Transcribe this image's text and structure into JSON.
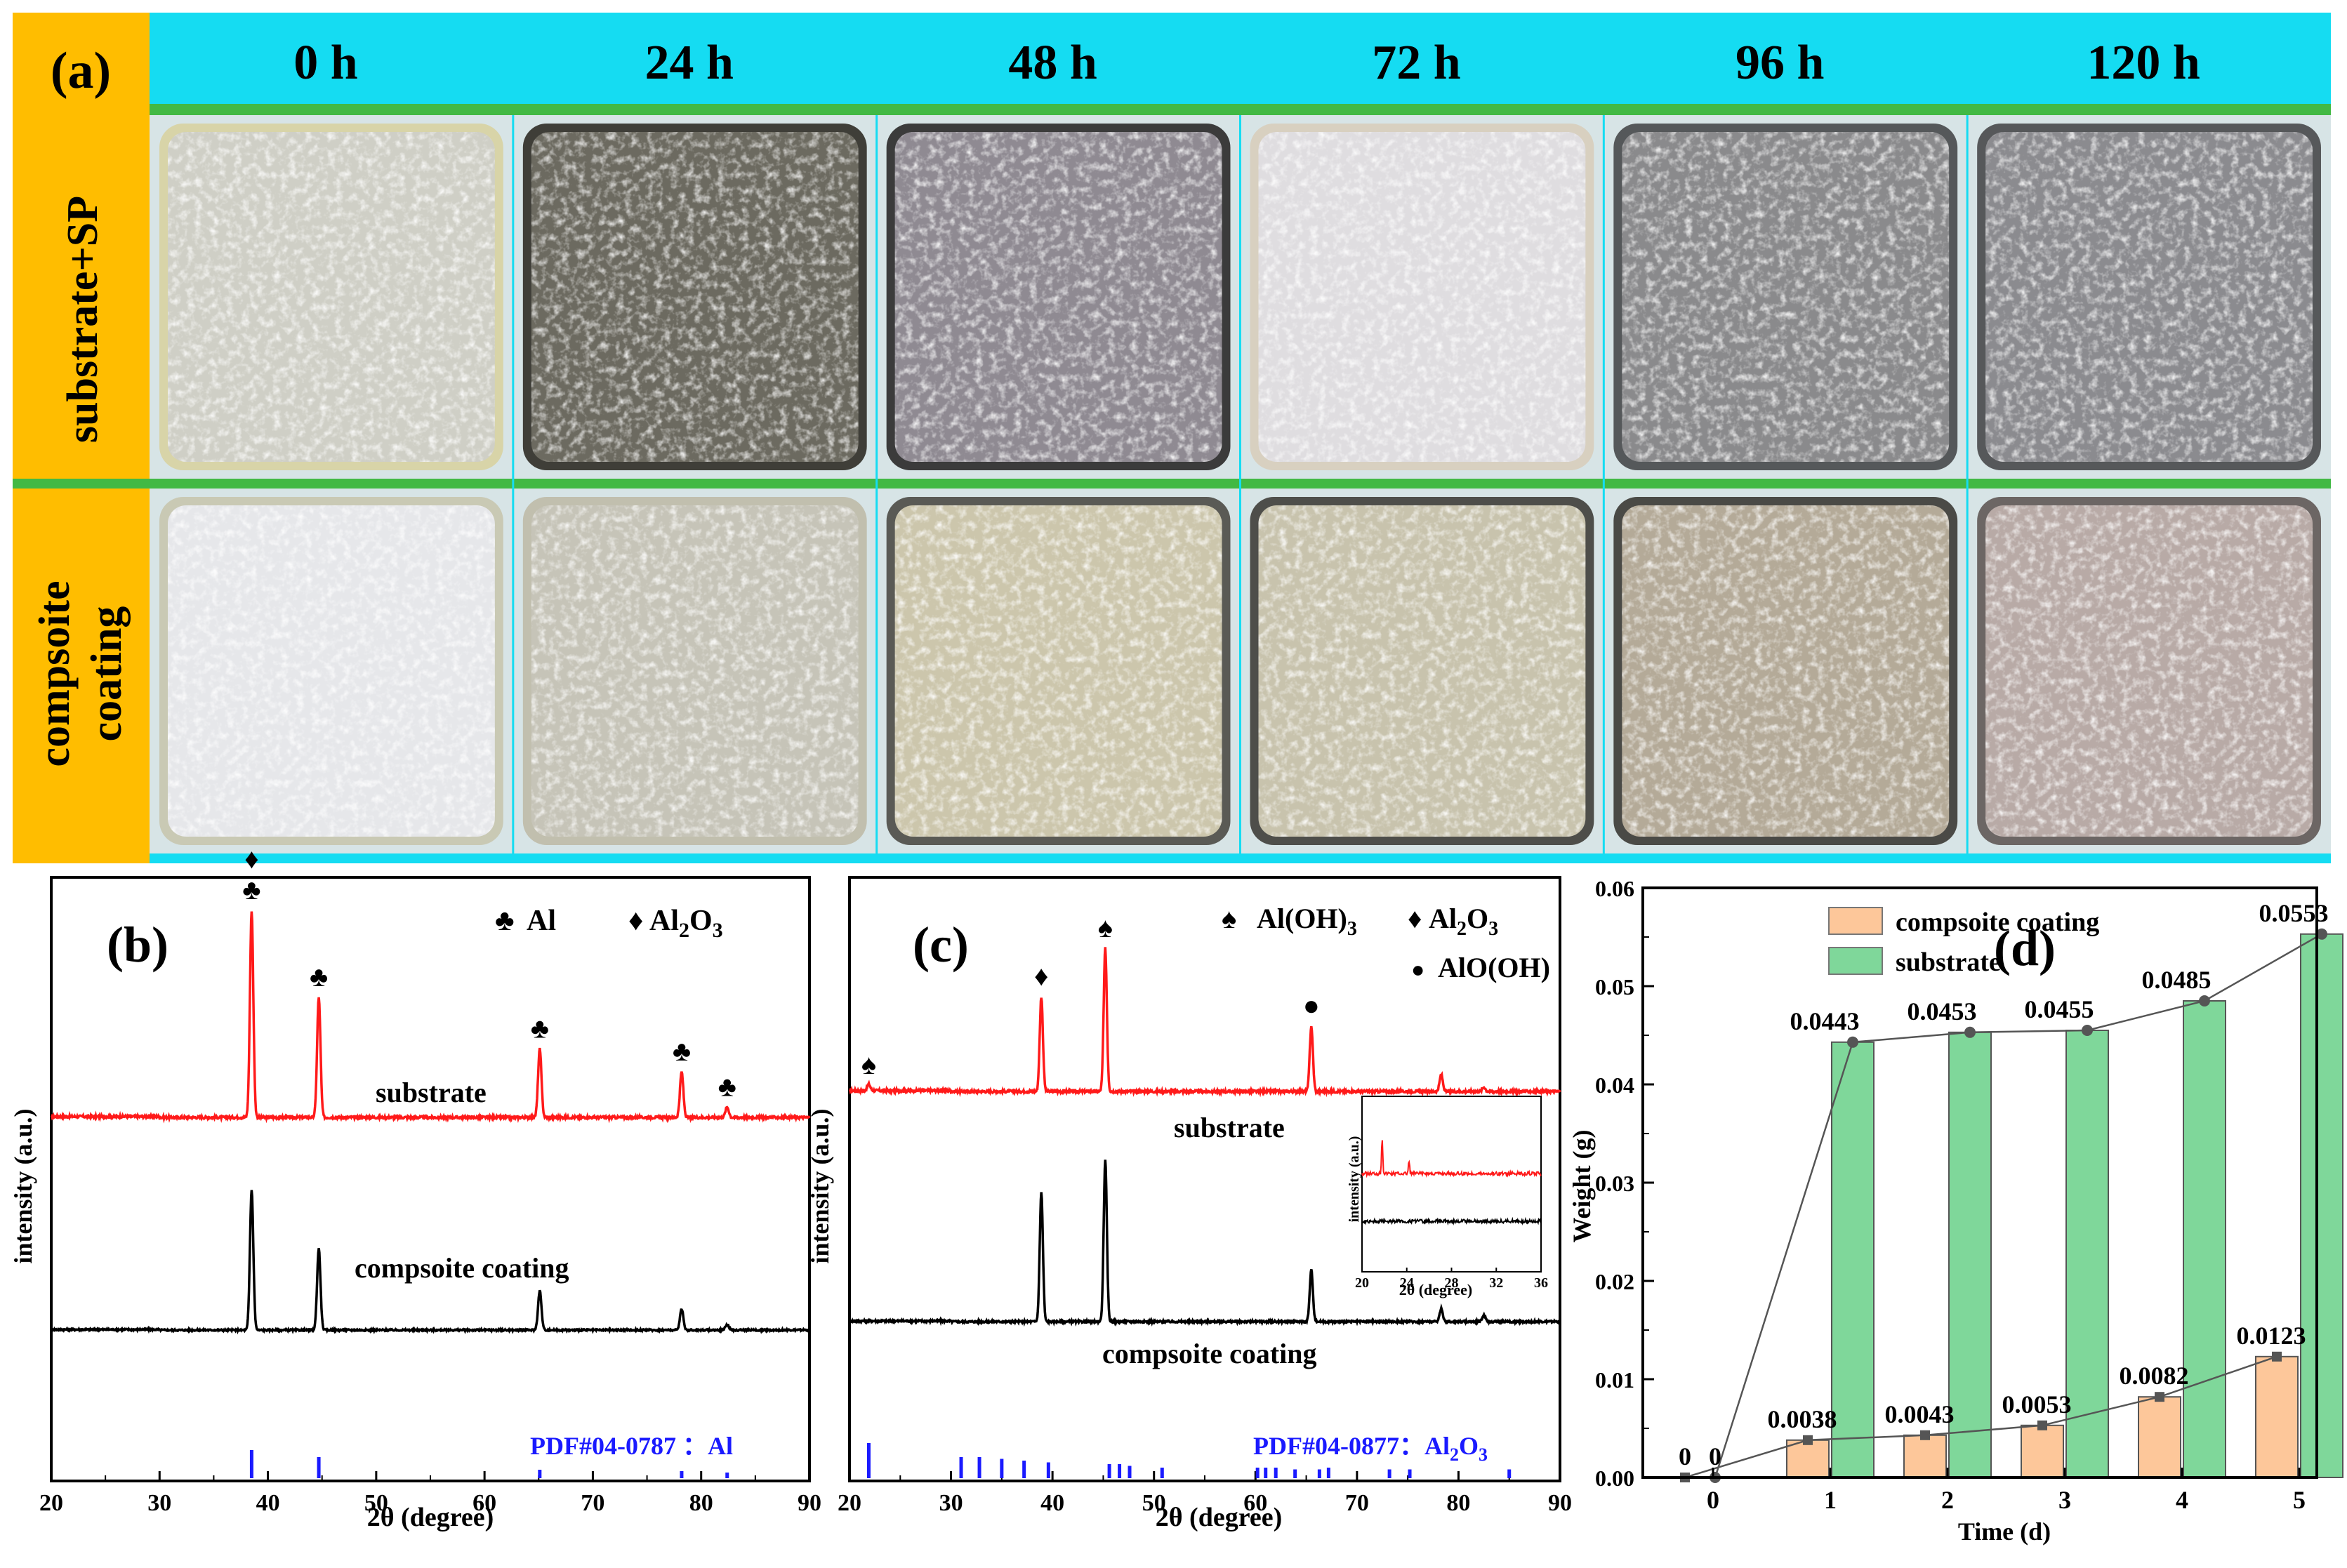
{
  "panel_a": {
    "label": "(a)",
    "times": [
      "0 h",
      "24 h",
      "48 h",
      "72 h",
      "96 h",
      "120 h"
    ],
    "rows": [
      "substrate+SP",
      [
        "compsoite",
        "coating"
      ]
    ],
    "colors": {
      "header": "#15dcf2",
      "row_label": "#ffbd00",
      "divider": "#42b944"
    },
    "samples": [
      [
        {
          "base": "#cfcfc6",
          "spot": "#ecece6",
          "rim": "#d8d4a8"
        },
        {
          "base": "#6c6a60",
          "spot": "#c9c8c0",
          "rim": "#3f3e38"
        },
        {
          "base": "#8f8a92",
          "spot": "#e2e4ea",
          "rim": "#3b3b3b"
        },
        {
          "base": "#dfdde0",
          "spot": "#f5f5f7",
          "rim": "#d8d0c0"
        },
        {
          "base": "#8a8a8c",
          "spot": "#d0d2d6",
          "rim": "#55585a"
        },
        {
          "base": "#8b8b8f",
          "spot": "#d4d6da",
          "rim": "#56585a"
        }
      ],
      [
        {
          "base": "#e6e7ea",
          "spot": "#f4f5f7",
          "rim": "#c9c9b4"
        },
        {
          "base": "#c6c4b8",
          "spot": "#dcdbd2",
          "rim": "#c1bfae"
        },
        {
          "base": "#ccc6ac",
          "spot": "#e5e1cf",
          "rim": "#5a5a55"
        },
        {
          "base": "#c8c3ad",
          "spot": "#e0dcca",
          "rim": "#4e4e4a"
        },
        {
          "base": "#b4aa98",
          "spot": "#d6cfc0",
          "rim": "#4a4a46"
        },
        {
          "base": "#b8aaa6",
          "spot": "#dad2cc",
          "rim": "#6c6664"
        }
      ]
    ]
  },
  "panel_b": {
    "label": "(b)",
    "legend": [
      {
        "sym": "♣",
        "text": "Al"
      },
      {
        "sym": "♦",
        "text": "Al",
        "sub": "2",
        "text2": "O",
        "sub2": "3"
      }
    ],
    "trace_labels": [
      "substrate",
      "compsoite coating"
    ],
    "ref_text": "PDF#04-0787 ：Al"
  },
  "panel_c": {
    "label": "(c)",
    "legend": [
      {
        "sym": "♠",
        "text": "Al(OH)",
        "sub": "3"
      },
      {
        "sym": "♦",
        "text": "Al",
        "sub": "2",
        "text2": "O",
        "sub2": "3"
      },
      {
        "sym": "●",
        "text": "AlO(OH)"
      }
    ],
    "trace_labels": [
      "substrate",
      "compsoite coating"
    ],
    "ref_text": "PDF#04-0877：Al",
    "ref_sub": "2",
    "ref_text2": "O",
    "ref_sub2": "3"
  },
  "chart_data": [
    {
      "type": "line",
      "panel": "(b)",
      "xlabel": "2θ (degree)",
      "ylabel": "intensity (a.u.)",
      "xlim": [
        20,
        90
      ],
      "xticks": [
        20,
        30,
        40,
        50,
        60,
        70,
        80,
        90
      ],
      "series": [
        {
          "name": "substrate",
          "color": "#ff1a1a",
          "peaks": [
            {
              "x": 38.5,
              "h": 1.0
            },
            {
              "x": 44.7,
              "h": 0.58
            },
            {
              "x": 65.1,
              "h": 0.33
            },
            {
              "x": 78.2,
              "h": 0.22
            },
            {
              "x": 82.4,
              "h": 0.05
            }
          ]
        },
        {
          "name": "compsoite coating",
          "color": "#000000",
          "peaks": [
            {
              "x": 38.5,
              "h": 1.0
            },
            {
              "x": 44.7,
              "h": 0.58
            },
            {
              "x": 65.1,
              "h": 0.28
            },
            {
              "x": 78.2,
              "h": 0.15
            },
            {
              "x": 82.4,
              "h": 0.04
            }
          ]
        }
      ],
      "markers": [
        {
          "x": 38.5,
          "syms": [
            "♦",
            "♣"
          ]
        },
        {
          "x": 44.7,
          "syms": [
            "♣"
          ]
        },
        {
          "x": 65.1,
          "syms": [
            "♣"
          ]
        },
        {
          "x": 78.2,
          "syms": [
            "♣"
          ]
        },
        {
          "x": 82.4,
          "syms": [
            "♣"
          ]
        }
      ],
      "reference": {
        "color": "#1a1aff",
        "lines": [
          {
            "x": 38.5,
            "h": 1.0
          },
          {
            "x": 44.7,
            "h": 0.75
          },
          {
            "x": 65.1,
            "h": 0.3
          },
          {
            "x": 78.2,
            "h": 0.25
          },
          {
            "x": 82.4,
            "h": 0.2
          }
        ]
      }
    },
    {
      "type": "line",
      "panel": "(c)",
      "xlabel": "2θ (degree)",
      "ylabel": "intensity (a.u.)",
      "xlim": [
        20,
        90
      ],
      "xticks": [
        20,
        30,
        40,
        50,
        60,
        70,
        80,
        90
      ],
      "series": [
        {
          "name": "substrate",
          "color": "#ff1a1a",
          "peaks": [
            {
              "x": 21.9,
              "h": 0.03
            },
            {
              "x": 38.9,
              "h": 0.45
            },
            {
              "x": 45.2,
              "h": 0.68
            },
            {
              "x": 65.5,
              "h": 0.31
            },
            {
              "x": 78.3,
              "h": 0.08
            },
            {
              "x": 82.5,
              "h": 0.02
            }
          ]
        },
        {
          "name": "compsoite coating",
          "color": "#000000",
          "peaks": [
            {
              "x": 38.9,
              "h": 0.8
            },
            {
              "x": 45.2,
              "h": 1.0
            },
            {
              "x": 65.5,
              "h": 0.32
            },
            {
              "x": 78.3,
              "h": 0.08
            },
            {
              "x": 82.5,
              "h": 0.04
            }
          ]
        }
      ],
      "markers": [
        {
          "x": 21.9,
          "syms": [
            "♠"
          ]
        },
        {
          "x": 38.9,
          "syms": [
            "♦"
          ]
        },
        {
          "x": 45.2,
          "syms": [
            "♠"
          ]
        },
        {
          "x": 65.5,
          "syms": [
            "●"
          ]
        }
      ],
      "reference": {
        "color": "#1a1aff",
        "lines": [
          {
            "x": 21.9,
            "h": 1.0
          },
          {
            "x": 31.0,
            "h": 0.6
          },
          {
            "x": 32.8,
            "h": 0.6
          },
          {
            "x": 35.0,
            "h": 0.55
          },
          {
            "x": 37.2,
            "h": 0.5
          },
          {
            "x": 39.6,
            "h": 0.45
          },
          {
            "x": 45.6,
            "h": 0.4
          },
          {
            "x": 46.6,
            "h": 0.4
          },
          {
            "x": 47.6,
            "h": 0.35
          },
          {
            "x": 50.8,
            "h": 0.3
          },
          {
            "x": 60.2,
            "h": 0.3
          },
          {
            "x": 61.0,
            "h": 0.3
          },
          {
            "x": 62.0,
            "h": 0.3
          },
          {
            "x": 63.9,
            "h": 0.25
          },
          {
            "x": 66.3,
            "h": 0.25
          },
          {
            "x": 67.2,
            "h": 0.3
          },
          {
            "x": 73.2,
            "h": 0.25
          },
          {
            "x": 75.2,
            "h": 0.25
          },
          {
            "x": 85.0,
            "h": 0.25
          }
        ]
      },
      "inset": {
        "xlabel": "2θ (degree)",
        "ylabel": "intensity (a.u.)",
        "xlim": [
          20,
          36
        ],
        "xticks": [
          20,
          24,
          28,
          32,
          36
        ],
        "series": [
          {
            "name": "substrate",
            "color": "#ff1a1a",
            "peaks": [
              {
                "x": 21.8,
                "h": 1.0
              },
              {
                "x": 24.2,
                "h": 0.35
              }
            ]
          },
          {
            "name": "compsoite coating",
            "color": "#000000",
            "peaks": []
          }
        ]
      }
    },
    {
      "type": "bar",
      "panel": "(d)",
      "xlabel": "Time (d)",
      "ylabel": "Weight (g)",
      "categories": [
        "0",
        "1",
        "2",
        "3",
        "4",
        "5"
      ],
      "ylim": [
        0,
        0.06
      ],
      "yticks": [
        "0.00",
        "0.01",
        "0.02",
        "0.03",
        "0.04",
        "0.05",
        "0.06"
      ],
      "series": [
        {
          "name": "compsoite coating",
          "color": "#fdc79a",
          "values": [
            0,
            0.0038,
            0.0043,
            0.0053,
            0.0082,
            0.0123
          ],
          "labels": [
            "0",
            "0.0038",
            "0.0043",
            "0.0053",
            "0.0082",
            "0.0123"
          ]
        },
        {
          "name": "substrate",
          "color": "#7fd79a",
          "values": [
            0,
            0.0443,
            0.0453,
            0.0455,
            0.0485,
            0.0553
          ],
          "labels": [
            "0",
            "0.0443",
            "0.0453",
            "0.0455",
            "0.0485",
            "0.0553"
          ]
        }
      ],
      "legend_position": "top-left"
    }
  ]
}
